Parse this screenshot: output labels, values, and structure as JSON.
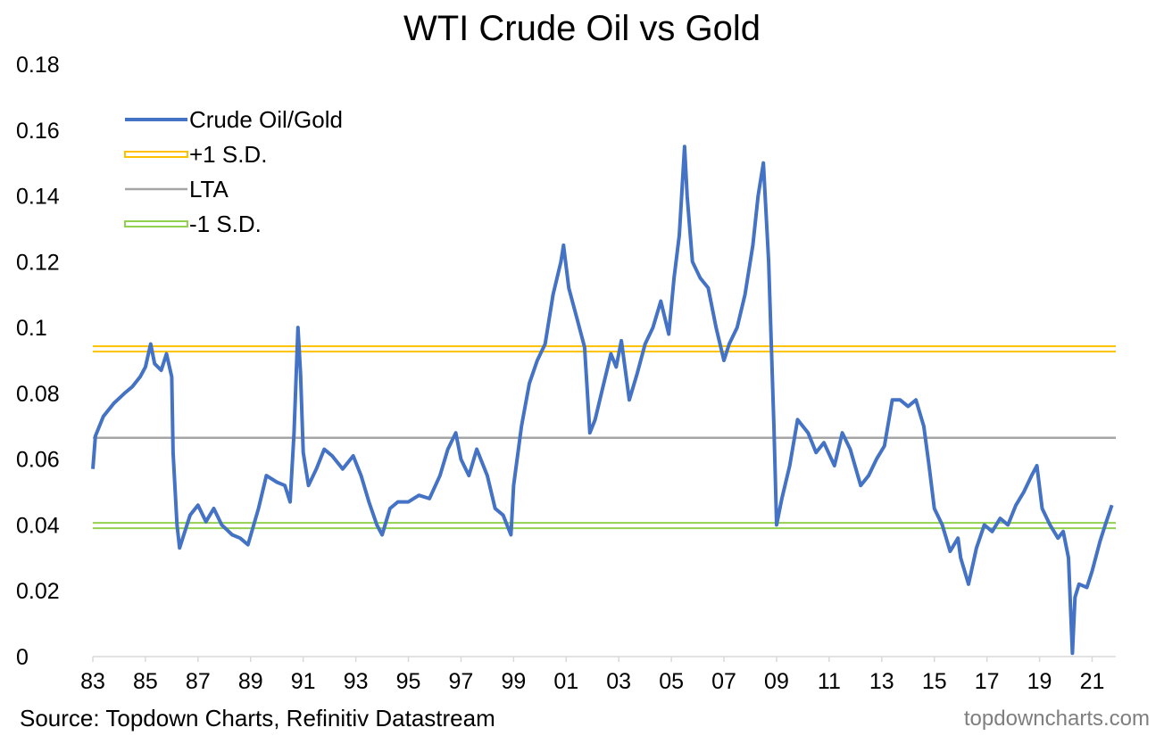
{
  "colors": {
    "series": "#4472C4",
    "plus_sd": "#FFC000",
    "lta": "#A5A5A5",
    "minus_sd": "#92D050",
    "axis": "#D9D9D9"
  },
  "chart_data": {
    "type": "line",
    "title": "WTI Crude Oil vs Gold",
    "xlabel": "",
    "ylabel": "",
    "xlim": [
      1983.0,
      2021.9
    ],
    "ylim": [
      0,
      0.18
    ],
    "y_ticks": [
      "0",
      "0.02",
      "0.04",
      "0.06",
      "0.08",
      "0.1",
      "0.12",
      "0.14",
      "0.16",
      "0.18"
    ],
    "x_ticks": [
      "83",
      "85",
      "87",
      "89",
      "91",
      "93",
      "95",
      "97",
      "99",
      "01",
      "03",
      "05",
      "07",
      "09",
      "11",
      "13",
      "15",
      "17",
      "19",
      "21"
    ],
    "grid": false,
    "legend_position": "top-left",
    "series": [
      {
        "name": "Crude Oil/Gold",
        "x": [
          1983.0,
          1983.1,
          1983.4,
          1983.8,
          1984.2,
          1984.5,
          1984.8,
          1985.0,
          1985.2,
          1985.35,
          1985.6,
          1985.8,
          1986.0,
          1986.05,
          1986.2,
          1986.3,
          1986.5,
          1986.7,
          1987.0,
          1987.3,
          1987.6,
          1987.9,
          1988.3,
          1988.6,
          1988.9,
          1989.3,
          1989.6,
          1990.0,
          1990.3,
          1990.5,
          1990.65,
          1990.8,
          1990.9,
          1991.0,
          1991.2,
          1991.5,
          1991.8,
          1992.1,
          1992.5,
          1992.9,
          1993.2,
          1993.5,
          1993.8,
          1994.0,
          1994.3,
          1994.6,
          1995.0,
          1995.4,
          1995.8,
          1996.2,
          1996.5,
          1996.8,
          1997.0,
          1997.3,
          1997.6,
          1998.0,
          1998.3,
          1998.6,
          1998.9,
          1999.0,
          1999.3,
          1999.6,
          1999.9,
          2000.2,
          2000.5,
          2000.8,
          2000.9,
          2001.1,
          2001.4,
          2001.7,
          2001.9,
          2002.1,
          2002.4,
          2002.7,
          2002.9,
          2003.1,
          2003.4,
          2003.7,
          2004.0,
          2004.3,
          2004.6,
          2004.9,
          2005.1,
          2005.3,
          2005.5,
          2005.6,
          2005.8,
          2006.1,
          2006.4,
          2006.7,
          2007.0,
          2007.2,
          2007.5,
          2007.8,
          2008.1,
          2008.3,
          2008.5,
          2008.7,
          2008.9,
          2009.0,
          2009.2,
          2009.5,
          2009.8,
          2010.2,
          2010.5,
          2010.8,
          2011.2,
          2011.5,
          2011.8,
          2012.2,
          2012.5,
          2012.8,
          2013.1,
          2013.4,
          2013.7,
          2014.0,
          2014.3,
          2014.6,
          2014.8,
          2015.0,
          2015.3,
          2015.6,
          2015.9,
          2016.0,
          2016.3,
          2016.6,
          2016.9,
          2017.2,
          2017.5,
          2017.8,
          2018.1,
          2018.4,
          2018.7,
          2018.9,
          2019.1,
          2019.4,
          2019.7,
          2019.9,
          2020.1,
          2020.25,
          2020.35,
          2020.5,
          2020.8,
          2021.0,
          2021.3,
          2021.5,
          2021.75
        ],
        "values": [
          0.057,
          0.067,
          0.073,
          0.077,
          0.08,
          0.082,
          0.085,
          0.088,
          0.095,
          0.089,
          0.087,
          0.092,
          0.085,
          0.062,
          0.04,
          0.033,
          0.038,
          0.043,
          0.046,
          0.041,
          0.045,
          0.04,
          0.037,
          0.036,
          0.034,
          0.045,
          0.055,
          0.053,
          0.052,
          0.047,
          0.068,
          0.1,
          0.086,
          0.062,
          0.052,
          0.057,
          0.063,
          0.061,
          0.057,
          0.061,
          0.055,
          0.047,
          0.04,
          0.037,
          0.045,
          0.047,
          0.047,
          0.049,
          0.048,
          0.055,
          0.063,
          0.068,
          0.06,
          0.055,
          0.063,
          0.055,
          0.045,
          0.043,
          0.037,
          0.052,
          0.07,
          0.083,
          0.09,
          0.095,
          0.11,
          0.12,
          0.125,
          0.112,
          0.103,
          0.094,
          0.068,
          0.072,
          0.082,
          0.092,
          0.088,
          0.096,
          0.078,
          0.086,
          0.095,
          0.1,
          0.108,
          0.098,
          0.115,
          0.128,
          0.155,
          0.14,
          0.12,
          0.115,
          0.112,
          0.1,
          0.09,
          0.095,
          0.1,
          0.11,
          0.125,
          0.14,
          0.15,
          0.12,
          0.07,
          0.04,
          0.048,
          0.058,
          0.072,
          0.068,
          0.062,
          0.065,
          0.058,
          0.068,
          0.063,
          0.052,
          0.055,
          0.06,
          0.064,
          0.078,
          0.078,
          0.076,
          0.078,
          0.07,
          0.058,
          0.045,
          0.04,
          0.032,
          0.036,
          0.03,
          0.022,
          0.033,
          0.04,
          0.038,
          0.042,
          0.04,
          0.046,
          0.05,
          0.055,
          0.058,
          0.045,
          0.04,
          0.036,
          0.038,
          0.03,
          0.001,
          0.018,
          0.022,
          0.021,
          0.026,
          0.035,
          0.04,
          0.046
        ]
      },
      {
        "name": "+1 S.D.",
        "value": 0.0935
      },
      {
        "name": "LTA",
        "value": 0.0665
      },
      {
        "name": "-1 S.D.",
        "value": 0.0398
      }
    ],
    "source": "Source: Topdown Charts, Refinitiv Datastream",
    "watermark": "topdowncharts.com"
  }
}
